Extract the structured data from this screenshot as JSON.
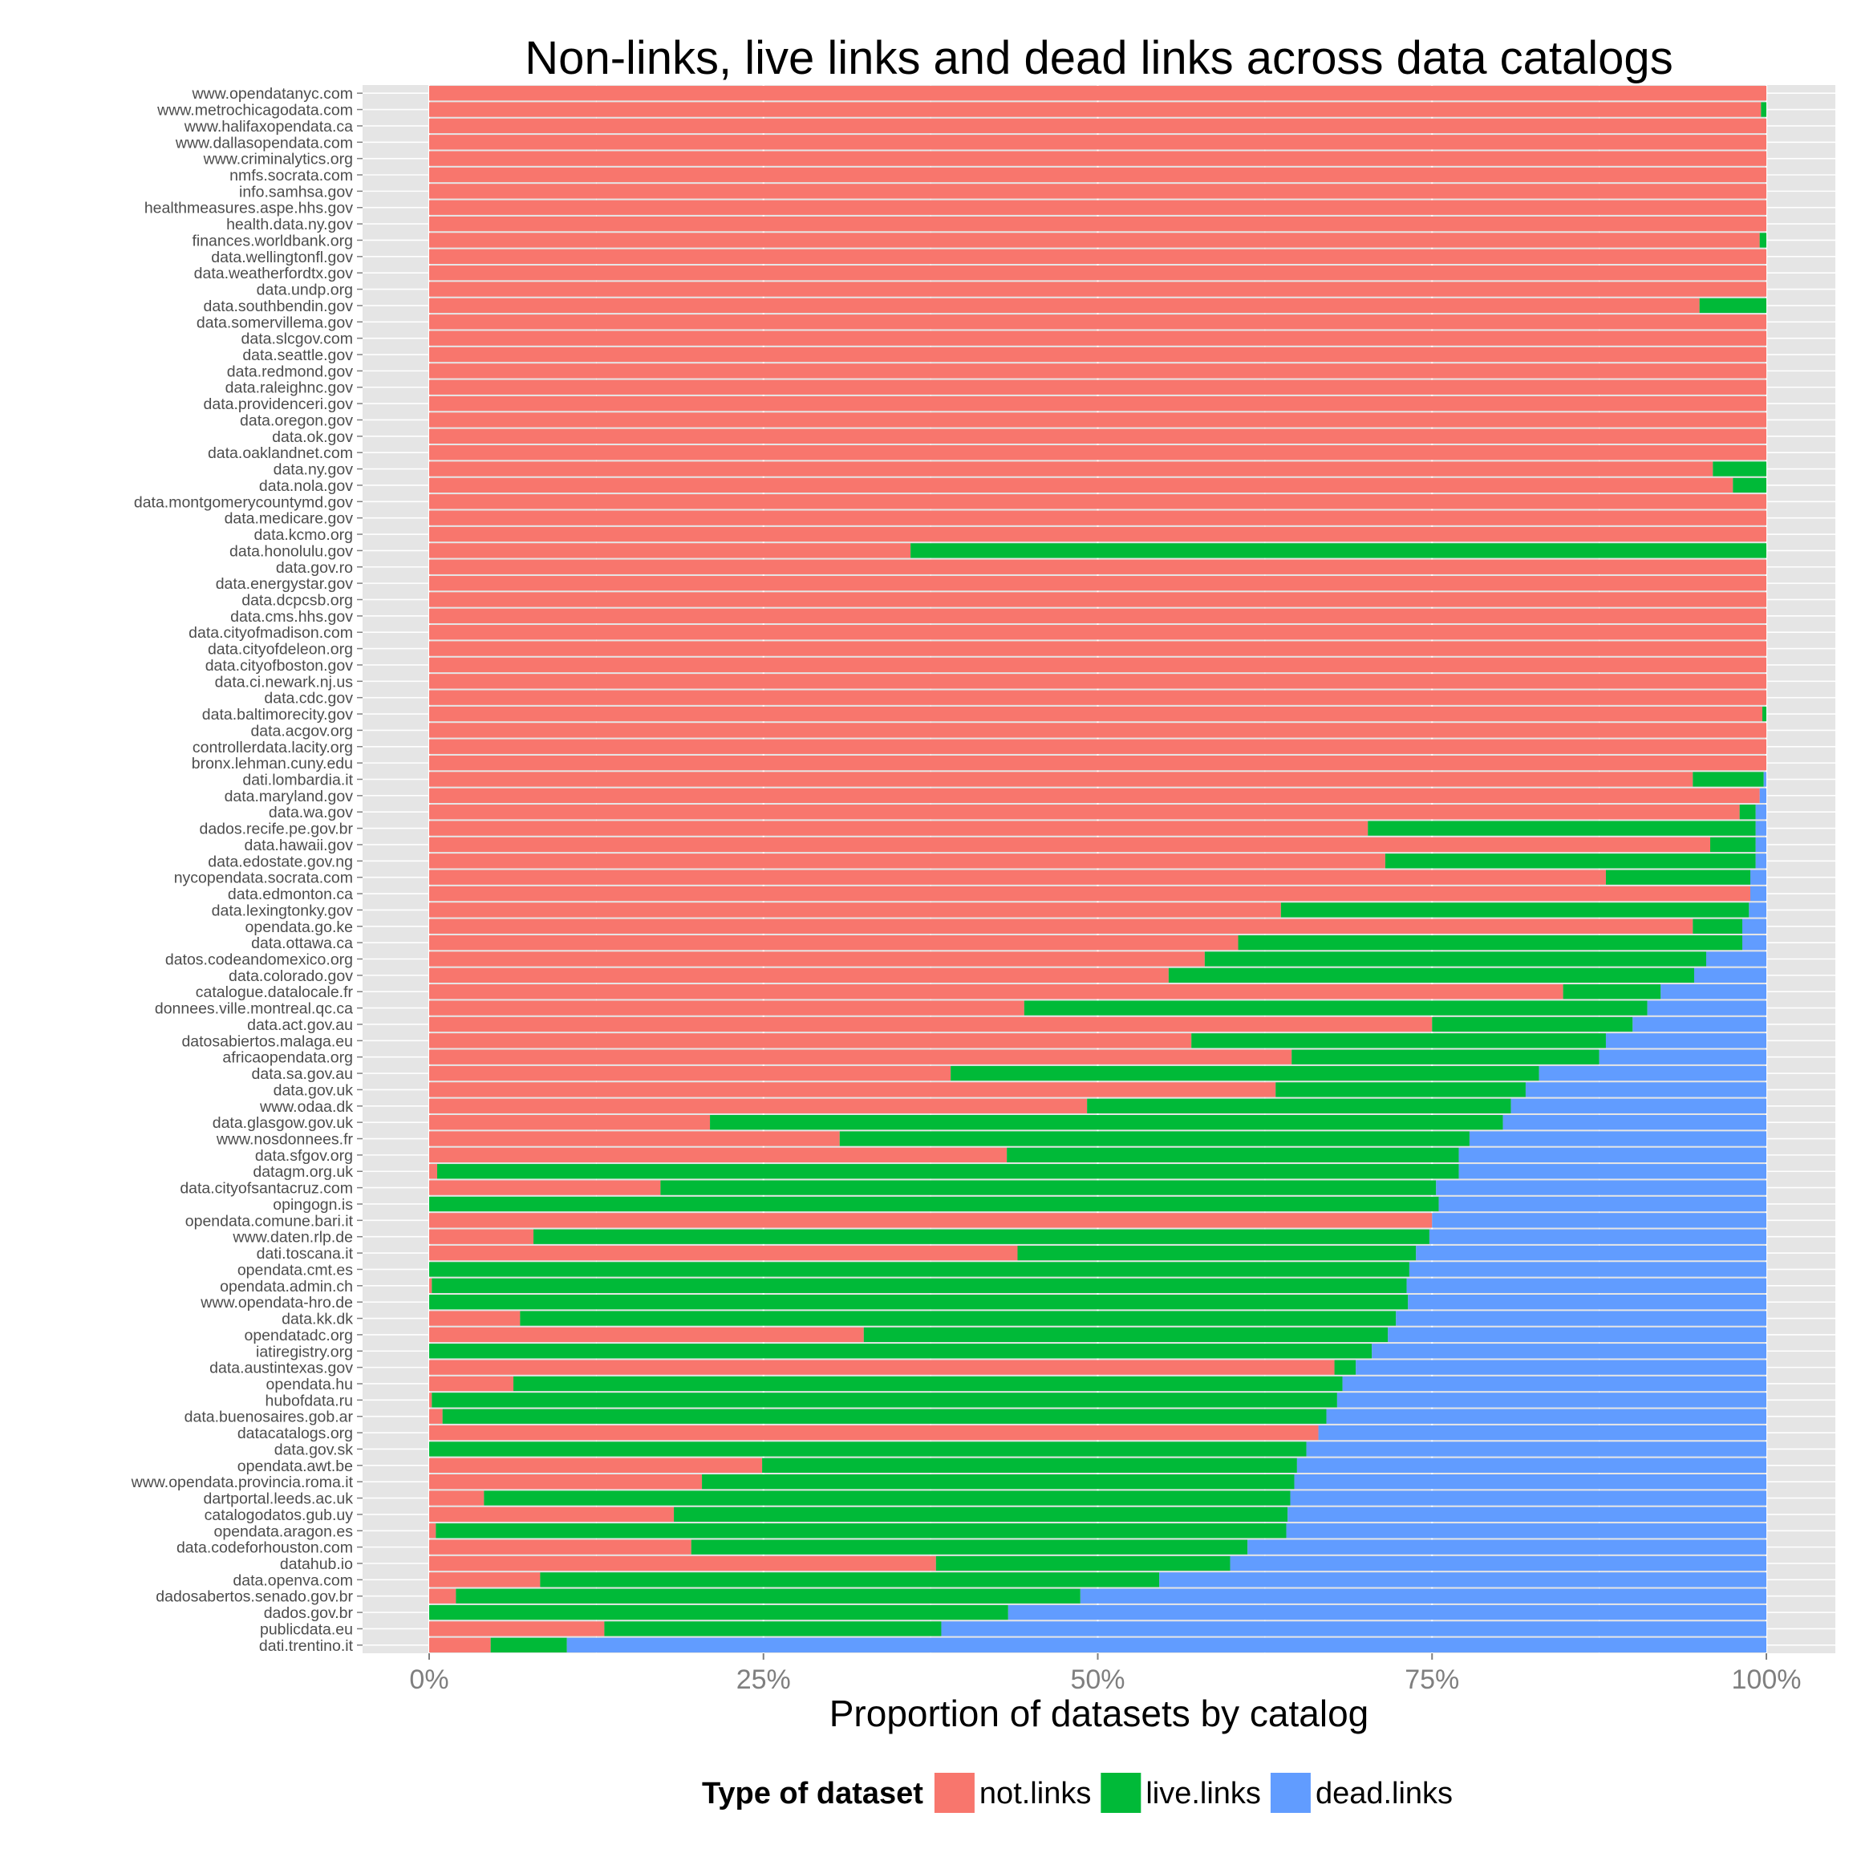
{
  "chart_data": {
    "type": "bar",
    "orientation": "horizontal",
    "stacked": "proportional",
    "title": "Non-links, live links and dead links across data catalogs",
    "xlabel": "Proportion of datasets by catalog",
    "ylabel": "",
    "xlim": [
      0,
      1
    ],
    "x_ticks": [
      "0%",
      "25%",
      "50%",
      "75%",
      "100%"
    ],
    "grid": true,
    "legend": {
      "title": "Type of dataset",
      "position": "bottom",
      "items": [
        "not.links",
        "live.links",
        "dead.links"
      ]
    },
    "colors": {
      "not.links": "#F8766D",
      "live.links": "#00BA38",
      "dead.links": "#619CFF",
      "panel": "#E5E5E5",
      "grid": "#F2F2F2"
    },
    "categories": [
      "www.opendatanyc.com",
      "www.metrochicagodata.com",
      "www.halifaxopendata.ca",
      "www.dallasopendata.com",
      "www.criminalytics.org",
      "nmfs.socrata.com",
      "info.samhsa.gov",
      "healthmeasures.aspe.hhs.gov",
      "health.data.ny.gov",
      "finances.worldbank.org",
      "data.wellingtonfl.gov",
      "data.weatherfordtx.gov",
      "data.undp.org",
      "data.southbendin.gov",
      "data.somervillema.gov",
      "data.slcgov.com",
      "data.seattle.gov",
      "data.redmond.gov",
      "data.raleighnc.gov",
      "data.providenceri.gov",
      "data.oregon.gov",
      "data.ok.gov",
      "data.oaklandnet.com",
      "data.ny.gov",
      "data.nola.gov",
      "data.montgomerycountymd.gov",
      "data.medicare.gov",
      "data.kcmo.org",
      "data.honolulu.gov",
      "data.gov.ro",
      "data.energystar.gov",
      "data.dcpcsb.org",
      "data.cms.hhs.gov",
      "data.cityofmadison.com",
      "data.cityofdeleon.org",
      "data.cityofboston.gov",
      "data.ci.newark.nj.us",
      "data.cdc.gov",
      "data.baltimorecity.gov",
      "data.acgov.org",
      "controllerdata.lacity.org",
      "bronx.lehman.cuny.edu",
      "dati.lombardia.it",
      "data.maryland.gov",
      "data.wa.gov",
      "dados.recife.pe.gov.br",
      "data.hawaii.gov",
      "data.edostate.gov.ng",
      "nycopendata.socrata.com",
      "data.edmonton.ca",
      "data.lexingtonky.gov",
      "opendata.go.ke",
      "data.ottawa.ca",
      "datos.codeandomexico.org",
      "data.colorado.gov",
      "catalogue.datalocale.fr",
      "donnees.ville.montreal.qc.ca",
      "data.act.gov.au",
      "datosabiertos.malaga.eu",
      "africaopendata.org",
      "data.sa.gov.au",
      "data.gov.uk",
      "www.odaa.dk",
      "data.glasgow.gov.uk",
      "www.nosdonnees.fr",
      "data.sfgov.org",
      "datagm.org.uk",
      "data.cityofsantacruz.com",
      "opingogn.is",
      "opendata.comune.bari.it",
      "www.daten.rlp.de",
      "dati.toscana.it",
      "opendata.cmt.es",
      "opendata.admin.ch",
      "www.opendata-hro.de",
      "data.kk.dk",
      "opendatadc.org",
      "iatiregistry.org",
      "data.austintexas.gov",
      "opendata.hu",
      "hubofdata.ru",
      "data.buenosaires.gob.ar",
      "datacatalogs.org",
      "data.gov.sk",
      "opendata.awt.be",
      "www.opendata.provincia.roma.it",
      "dartportal.leeds.ac.uk",
      "catalogodatos.gub.uy",
      "opendata.aragon.es",
      "data.codeforhouston.com",
      "datahub.io",
      "data.openva.com",
      "dadosabertos.senado.gov.br",
      "dados.gov.br",
      "publicdata.eu",
      "dati.trentino.it"
    ],
    "series": [
      {
        "name": "not.links",
        "values": [
          1,
          0.996,
          1,
          1,
          1,
          1,
          1,
          1,
          1,
          0.995,
          1,
          1,
          1,
          0.95,
          1,
          1,
          1,
          1,
          1,
          1,
          1,
          1,
          1,
          0.96,
          0.975,
          1,
          1,
          1,
          0.36,
          1,
          1,
          1,
          1,
          1,
          1,
          1,
          1,
          1,
          0.997,
          1,
          1,
          1,
          0.945,
          0.995,
          0.98,
          0.702,
          0.958,
          0.715,
          0.88,
          0.988,
          0.637,
          0.945,
          0.605,
          0.58,
          0.553,
          0.848,
          0.445,
          0.75,
          0.57,
          0.645,
          0.39,
          0.633,
          0.492,
          0.21,
          0.307,
          0.432,
          0.006,
          0.173,
          0,
          0.75,
          0.078,
          0.44,
          0,
          0.002,
          0,
          0.068,
          0.325,
          0,
          0.677,
          0.063,
          0.002,
          0.01,
          0.665,
          0,
          0.249,
          0.204,
          0.041,
          0.183,
          0.005,
          0.196,
          0.379,
          0.083,
          0.02,
          0,
          0.131,
          0.046
        ]
      },
      {
        "name": "live.links",
        "values": [
          0,
          0.004,
          0,
          0,
          0,
          0,
          0,
          0,
          0,
          0.005,
          0,
          0,
          0,
          0.05,
          0,
          0,
          0,
          0,
          0,
          0,
          0,
          0,
          0,
          0.04,
          0.025,
          0,
          0,
          0,
          0.64,
          0,
          0,
          0,
          0,
          0,
          0,
          0,
          0,
          0,
          0.003,
          0,
          0,
          0,
          0.053,
          0,
          0.012,
          0.29,
          0.034,
          0.277,
          0.108,
          0,
          0.35,
          0.037,
          0.377,
          0.375,
          0.393,
          0.073,
          0.466,
          0.15,
          0.31,
          0.23,
          0.44,
          0.187,
          0.317,
          0.593,
          0.471,
          0.338,
          0.764,
          0.58,
          0.755,
          0,
          0.67,
          0.298,
          0.733,
          0.729,
          0.732,
          0.655,
          0.392,
          0.705,
          0.016,
          0.62,
          0.677,
          0.661,
          0,
          0.656,
          0.4,
          0.443,
          0.603,
          0.459,
          0.636,
          0.416,
          0.22,
          0.463,
          0.467,
          0.433,
          0.252,
          0.057
        ]
      },
      {
        "name": "dead.links",
        "values": [
          0,
          0,
          0,
          0,
          0,
          0,
          0,
          0,
          0,
          0,
          0,
          0,
          0,
          0,
          0,
          0,
          0,
          0,
          0,
          0,
          0,
          0,
          0,
          0,
          0,
          0,
          0,
          0,
          0,
          0,
          0,
          0,
          0,
          0,
          0,
          0,
          0,
          0,
          0,
          0,
          0,
          0,
          0.002,
          0.005,
          0.008,
          0.008,
          0.008,
          0.008,
          0.012,
          0.012,
          0.013,
          0.018,
          0.018,
          0.045,
          0.054,
          0.079,
          0.089,
          0.1,
          0.12,
          0.125,
          0.17,
          0.18,
          0.191,
          0.197,
          0.222,
          0.23,
          0.23,
          0.247,
          0.245,
          0.25,
          0.252,
          0.262,
          0.267,
          0.269,
          0.268,
          0.277,
          0.283,
          0.295,
          0.307,
          0.317,
          0.321,
          0.329,
          0.335,
          0.344,
          0.351,
          0.353,
          0.356,
          0.358,
          0.359,
          0.388,
          0.401,
          0.454,
          0.513,
          0.567,
          0.617,
          0.897
        ]
      }
    ]
  }
}
